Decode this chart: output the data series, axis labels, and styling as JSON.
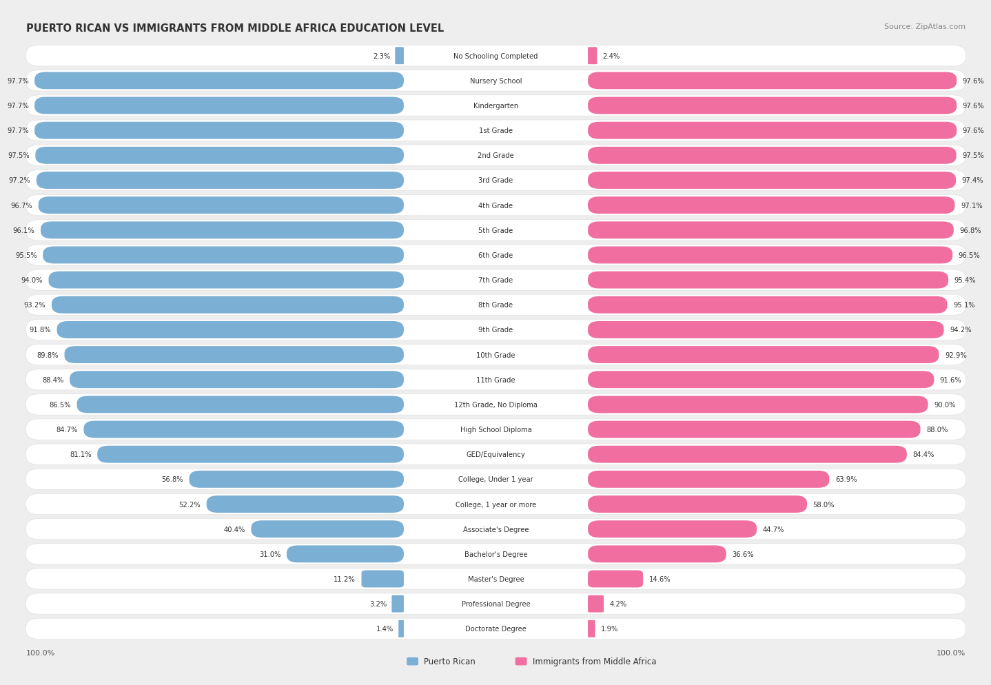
{
  "title": "PUERTO RICAN VS IMMIGRANTS FROM MIDDLE AFRICA EDUCATION LEVEL",
  "source": "Source: ZipAtlas.com",
  "categories": [
    "No Schooling Completed",
    "Nursery School",
    "Kindergarten",
    "1st Grade",
    "2nd Grade",
    "3rd Grade",
    "4th Grade",
    "5th Grade",
    "6th Grade",
    "7th Grade",
    "8th Grade",
    "9th Grade",
    "10th Grade",
    "11th Grade",
    "12th Grade, No Diploma",
    "High School Diploma",
    "GED/Equivalency",
    "College, Under 1 year",
    "College, 1 year or more",
    "Associate's Degree",
    "Bachelor's Degree",
    "Master's Degree",
    "Professional Degree",
    "Doctorate Degree"
  ],
  "puerto_rican": [
    2.3,
    97.7,
    97.7,
    97.7,
    97.5,
    97.2,
    96.7,
    96.1,
    95.5,
    94.0,
    93.2,
    91.8,
    89.8,
    88.4,
    86.5,
    84.7,
    81.1,
    56.8,
    52.2,
    40.4,
    31.0,
    11.2,
    3.2,
    1.4
  ],
  "middle_africa": [
    2.4,
    97.6,
    97.6,
    97.6,
    97.5,
    97.4,
    97.1,
    96.8,
    96.5,
    95.4,
    95.1,
    94.2,
    92.9,
    91.6,
    90.0,
    88.0,
    84.4,
    63.9,
    58.0,
    44.7,
    36.6,
    14.6,
    4.2,
    1.9
  ],
  "bar_color_pr": "#7bafd4",
  "bar_color_ma": "#f06fa0",
  "bg_color": "#eeeeee",
  "bar_bg_color": "#ffffff",
  "legend_pr": "Puerto Rican",
  "legend_ma": "Immigrants from Middle Africa",
  "axis_label_left": "100.0%",
  "axis_label_right": "100.0%"
}
